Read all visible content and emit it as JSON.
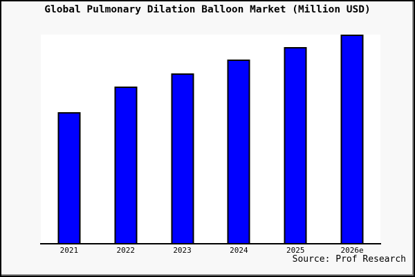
{
  "chart_data": {
    "type": "bar",
    "title": "Global Pulmonary Dilation Balloon Market (Million USD)",
    "categories": [
      "2021",
      "2022",
      "2023",
      "2024",
      "2025",
      "2026e"
    ],
    "values": [
      62.8,
      75.1,
      81.4,
      88.0,
      94.0,
      100.0
    ],
    "value_note": "No y-axis ticks shown; values estimated as percent of tallest (2026e) bar from pixel heights",
    "xlabel": "",
    "ylabel": "",
    "ylim": [
      0,
      100
    ],
    "grid": false,
    "legend": "none",
    "bar_orientation": "vertical"
  },
  "source": {
    "text": "Source: Prof Research"
  },
  "colors": {
    "bar_fill": "#0000ff",
    "bar_border": "#000000",
    "background": "#f8f8f8",
    "plot_background": "#ffffff",
    "axis": "#000000",
    "frame_border": "#000000",
    "text": "#000000"
  }
}
